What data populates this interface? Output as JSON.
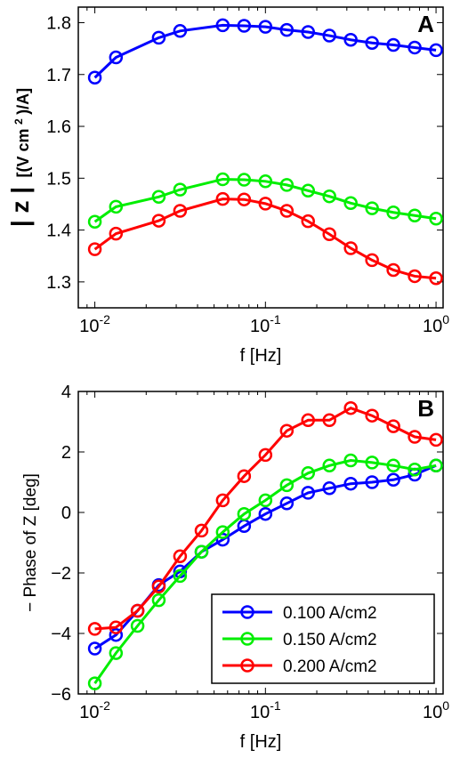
{
  "chart_data": [
    {
      "type": "line",
      "panel_label": "A",
      "xlabel": "f [Hz]",
      "ylabel_main": "| z |",
      "ylabel_unit_prefix": "[(V cm",
      "ylabel_unit_sup": "2",
      "ylabel_unit_suffix": ")/A]",
      "xscale": "log",
      "xlim": [
        0.008,
        1.1
      ],
      "ylim": [
        1.25,
        1.83
      ],
      "xticks": [
        0.01,
        0.1,
        1
      ],
      "xtick_base": "10",
      "xtick_exponents": [
        "-2",
        "-1",
        "0"
      ],
      "yticks": [
        1.3,
        1.4,
        1.5,
        1.6,
        1.7,
        1.8
      ],
      "ytick_labels": [
        "1.3",
        "1.4",
        "1.5",
        "1.6",
        "1.7",
        "1.8"
      ],
      "grid": false,
      "x": [
        0.01,
        0.0133,
        0.0237,
        0.0316,
        0.0562,
        0.075,
        0.1,
        0.1334,
        0.1778,
        0.2371,
        0.3162,
        0.4217,
        0.5623,
        0.7499,
        1.0
      ],
      "series": [
        {
          "name": "0.100 A/cm2",
          "color": "#0000ff",
          "values": [
            1.694,
            1.733,
            1.771,
            1.784,
            1.795,
            1.794,
            1.792,
            1.786,
            1.782,
            1.775,
            1.767,
            1.761,
            1.757,
            1.752,
            1.747
          ]
        },
        {
          "name": "0.150 A/cm2",
          "color": "#00ee00",
          "values": [
            1.416,
            1.445,
            1.464,
            1.478,
            1.498,
            1.497,
            1.494,
            1.487,
            1.476,
            1.465,
            1.452,
            1.442,
            1.434,
            1.428,
            1.422
          ]
        },
        {
          "name": "0.200 A/cm2",
          "color": "#ff0000",
          "values": [
            1.363,
            1.393,
            1.418,
            1.437,
            1.46,
            1.459,
            1.451,
            1.437,
            1.417,
            1.392,
            1.365,
            1.342,
            1.323,
            1.311,
            1.307
          ]
        }
      ]
    },
    {
      "type": "line",
      "panel_label": "B",
      "xlabel": "f [Hz]",
      "ylabel": "− Phase of Z [deg]",
      "xscale": "log",
      "xlim": [
        0.008,
        1.1
      ],
      "ylim": [
        -6,
        4
      ],
      "xticks": [
        0.01,
        0.1,
        1
      ],
      "xtick_base": "10",
      "xtick_exponents": [
        "-2",
        "-1",
        "0"
      ],
      "yticks": [
        -6,
        -4,
        -2,
        0,
        2,
        4
      ],
      "ytick_labels": [
        "−6",
        "−4",
        "−2",
        "0",
        "2",
        "4"
      ],
      "grid": false,
      "legend_position": "bottom-right",
      "x": [
        0.01,
        0.0133,
        0.0178,
        0.0237,
        0.0316,
        0.0422,
        0.0562,
        0.075,
        0.1,
        0.1334,
        0.1778,
        0.2371,
        0.3162,
        0.4217,
        0.5623,
        0.7499,
        1.0
      ],
      "series": [
        {
          "name": "0.100 A/cm2",
          "color": "#0000ff",
          "values": [
            -4.5,
            -4.05,
            -3.25,
            -2.4,
            -1.95,
            -1.3,
            -0.9,
            -0.45,
            -0.05,
            0.3,
            0.65,
            0.8,
            0.95,
            1.0,
            1.08,
            1.25,
            1.55
          ]
        },
        {
          "name": "0.150 A/cm2",
          "color": "#00ee00",
          "values": [
            -5.65,
            -4.65,
            -3.75,
            -2.9,
            -2.1,
            -1.3,
            -0.65,
            -0.05,
            0.4,
            0.9,
            1.3,
            1.55,
            1.72,
            1.65,
            1.55,
            1.42,
            1.55
          ]
        },
        {
          "name": "0.200 A/cm2",
          "color": "#ff0000",
          "values": [
            -3.85,
            -3.8,
            -3.25,
            -2.45,
            -1.45,
            -0.6,
            0.4,
            1.2,
            1.9,
            2.7,
            3.05,
            3.05,
            3.45,
            3.2,
            2.85,
            2.5,
            2.4
          ]
        }
      ]
    }
  ]
}
